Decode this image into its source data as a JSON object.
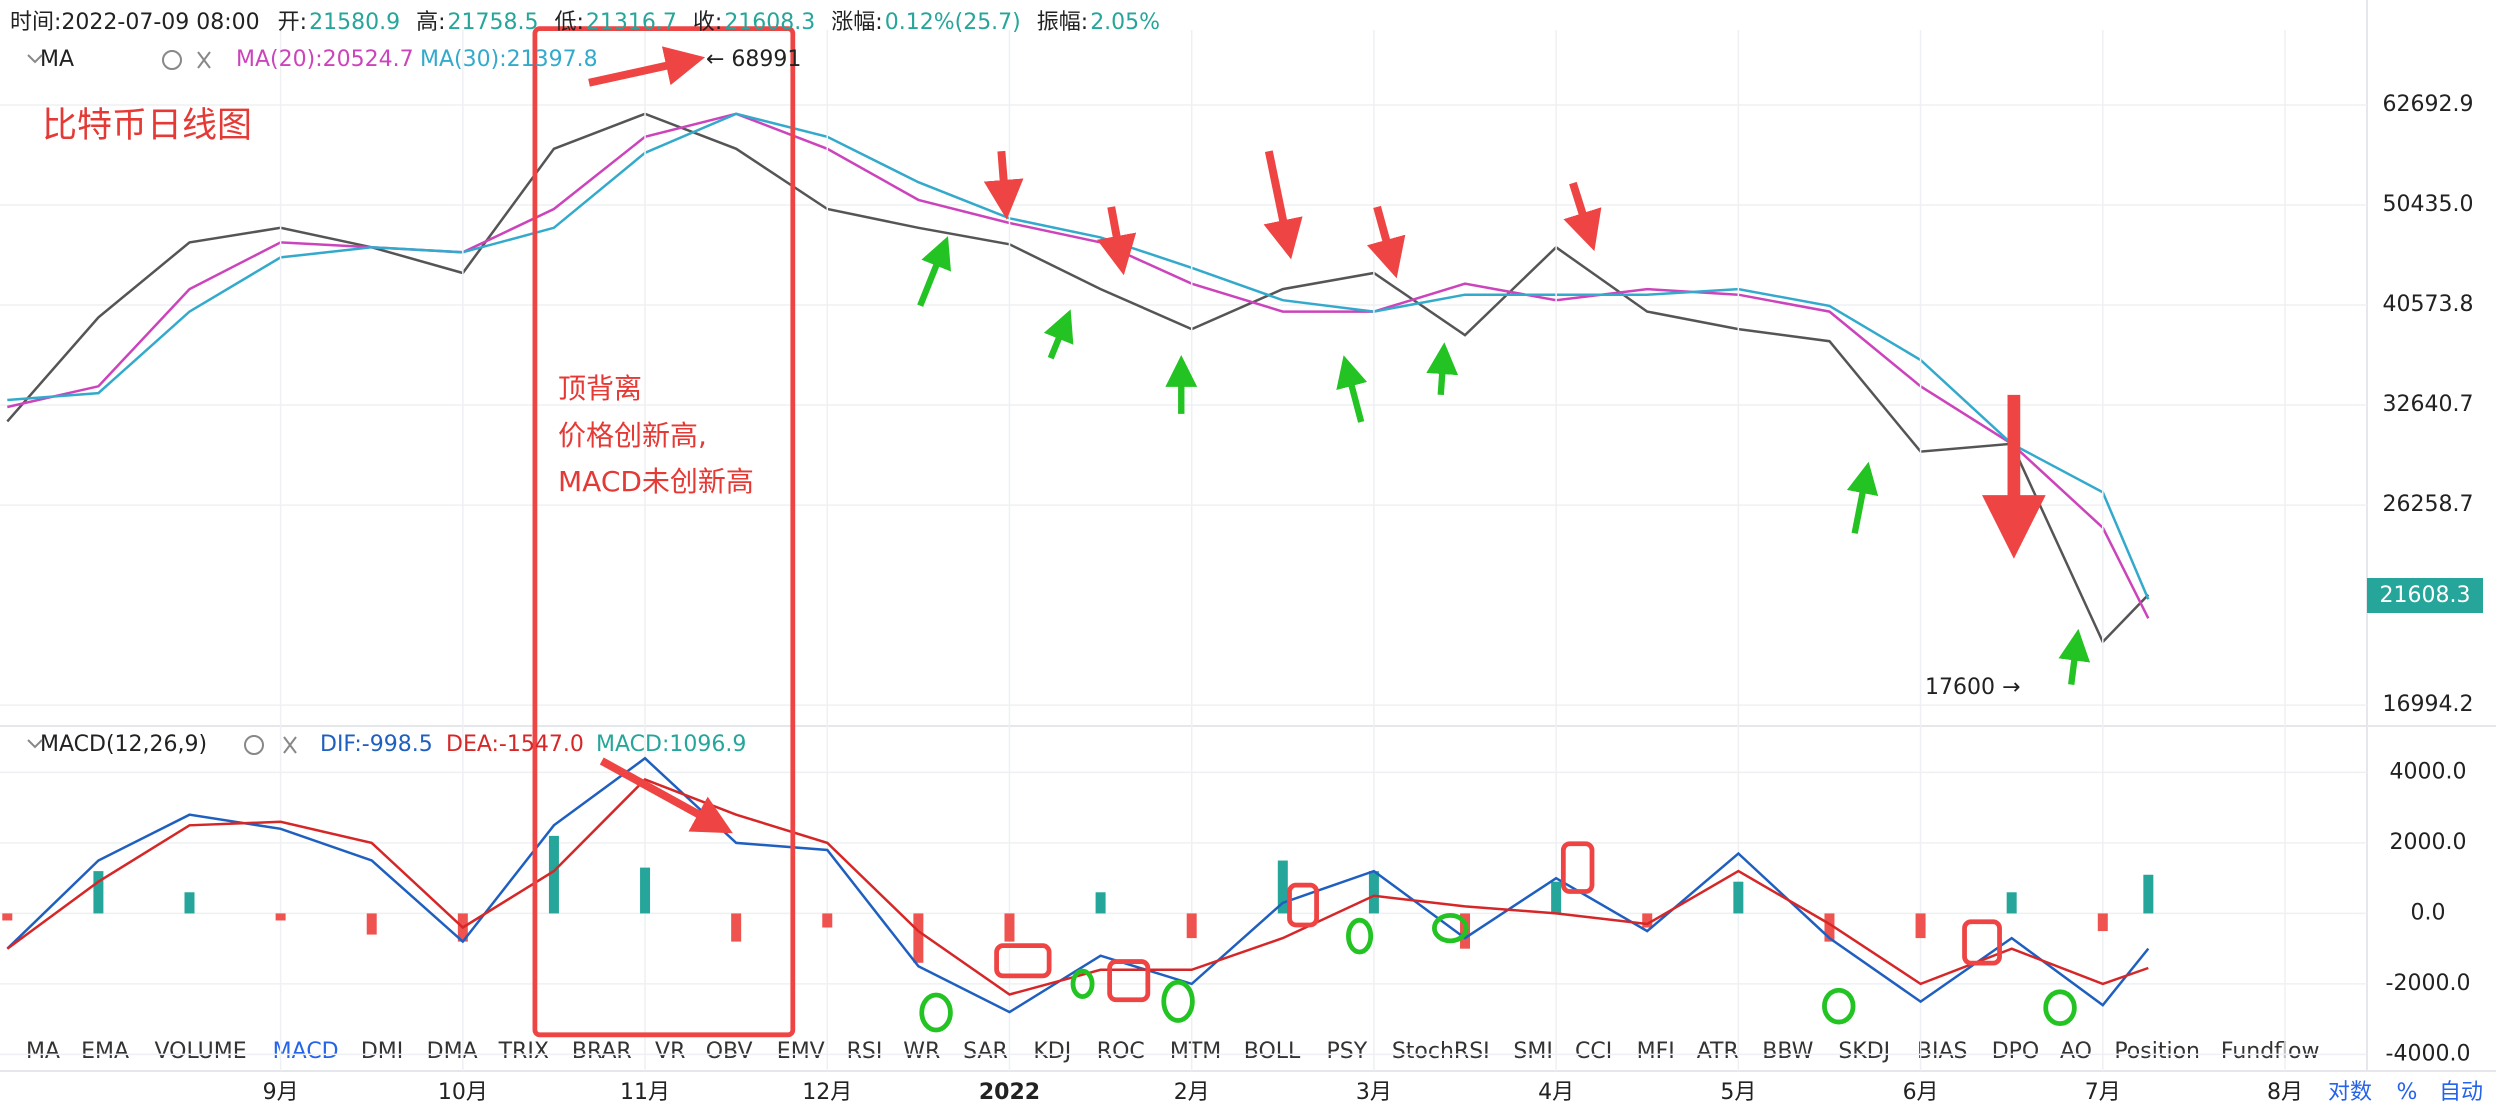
{
  "header": [
    {
      "label": "时间:2022-07-09 08:00"
    },
    {
      "label": "开:",
      "value": "21580.9"
    },
    {
      "label": "高:",
      "value": "21758.5"
    },
    {
      "label": "低:",
      "value": "21316.7"
    },
    {
      "label": "收:",
      "value": "21608.3"
    },
    {
      "label": "涨幅:",
      "value": "0.12%(25.7)"
    },
    {
      "label": "振幅:",
      "value": "2.05%"
    }
  ],
  "price_legend": {
    "name": "MA",
    "items": [
      "MA(20):20524.7",
      "MA(30):21397.8"
    ]
  },
  "macd_legend": {
    "name": "MACD(12,26,9)",
    "items": [
      "DIF:-998.5",
      "DEA:-1547.0",
      "MACD:1096.9"
    ]
  },
  "title": "比特币日线图",
  "annotations": {
    "box": [
      "顶背离",
      "价格创新高,",
      "MACD未创新高"
    ],
    "high": "← 68991",
    "low": "17600 →"
  },
  "price_badge": "21608.3",
  "tabs": [
    "MA",
    "EMA",
    "VOLUME",
    "MACD",
    "DMI",
    "DMA",
    "TRIX",
    "BRAR",
    "VR",
    "OBV",
    "EMV",
    "RSI",
    "WR",
    "SAR",
    "KDJ",
    "ROC",
    "MTM",
    "BOLL",
    "PSY",
    "StochRSI",
    "SMI",
    "CCI",
    "MFI",
    "ATR",
    "BBW",
    "SKDJ",
    "BIAS",
    "DPO",
    "AO",
    "Position",
    "Fundflow"
  ],
  "active_tab": "MACD",
  "bottom_controls": [
    "对数",
    "%",
    "自动"
  ],
  "chart_data": [
    {
      "type": "line",
      "log_scale": true,
      "grid": true,
      "x": [
        7.5,
        8,
        8.5,
        9,
        9.5,
        10,
        10.5,
        11,
        11.5,
        12,
        12.5,
        13,
        13.5,
        14,
        14.5,
        15,
        15.5,
        16,
        16.5,
        17,
        17.5,
        18,
        18.5,
        19,
        19.25
      ],
      "xlim": [
        7.46,
        20.45
      ],
      "ylim": [
        16310,
        73800
      ],
      "yticks": [
        62692.9,
        {
          "value": 50435.0,
          "label": "50435.0"
        },
        40573.8,
        32640.7,
        26258.7,
        16994.2
      ],
      "series": [
        {
          "color": "#555555",
          "values": [
            31500,
            39500,
            46500,
            48000,
            46000,
            43500,
            57000,
            61500,
            57000,
            50000,
            48000,
            46300,
            42000,
            38500,
            42000,
            43500,
            38000,
            46000,
            40000,
            38500,
            37500,
            29500,
            30000,
            19500,
            21608.3
          ]
        },
        {
          "color": "#cc44bb",
          "values": [
            32500,
            34000,
            42000,
            46500,
            46000,
            45500,
            50000,
            58500,
            61500,
            57000,
            51000,
            48500,
            46500,
            42500,
            40000,
            40000,
            42500,
            41000,
            42000,
            41500,
            40000,
            34000,
            30000,
            25000,
            20524.7
          ]
        },
        {
          "color": "#33aacc",
          "values": [
            33000,
            33500,
            40000,
            45000,
            46000,
            45500,
            48000,
            56500,
            61500,
            58500,
            53000,
            49000,
            47000,
            44000,
            41000,
            40000,
            41500,
            41500,
            41500,
            42000,
            40500,
            36000,
            30000,
            27000,
            21397.8
          ]
        }
      ]
    },
    {
      "type": "macd",
      "grid": true,
      "x": [
        7.5,
        8,
        8.5,
        9,
        9.5,
        10,
        10.5,
        11,
        11.5,
        12,
        12.5,
        13,
        13.5,
        14,
        14.5,
        15,
        15.5,
        16,
        16.5,
        17,
        17.5,
        18,
        18.5,
        19,
        19.25
      ],
      "xlim": [
        7.46,
        20.45
      ],
      "xticks": [
        {
          "value": 9,
          "label": "9月"
        },
        {
          "value": 10,
          "label": "10月"
        },
        {
          "value": 11,
          "label": "11月"
        },
        {
          "value": 12,
          "label": "12月"
        },
        {
          "value": 13,
          "label": "2022"
        },
        {
          "value": 14,
          "label": "2月"
        },
        {
          "value": 15,
          "label": "3月"
        },
        {
          "value": 16,
          "label": "4月"
        },
        {
          "value": 17,
          "label": "5月"
        },
        {
          "value": 18,
          "label": "6月"
        },
        {
          "value": 19,
          "label": "7月"
        },
        {
          "value": 20,
          "label": "8月"
        }
      ],
      "ylim": [
        -4470,
        5260
      ],
      "yticks": [
        {
          "value": 4000,
          "label": "4000.0"
        },
        {
          "value": 2000,
          "label": "2000.0"
        },
        {
          "value": 0,
          "label": "0.0"
        },
        {
          "value": -2000,
          "label": "-2000.0"
        },
        {
          "value": -4000,
          "label": "-4000.0"
        }
      ],
      "series": [
        {
          "kind": "bar",
          "colors": [
            "#26a69a",
            "#ef5350"
          ],
          "values": [
            -200,
            1200,
            600,
            -200,
            -600,
            -800,
            2200,
            1300,
            -800,
            -400,
            -1400,
            -800,
            600,
            -700,
            1500,
            1200,
            -1000,
            900,
            -400,
            900,
            -800,
            -700,
            600,
            -500,
            1096.9
          ]
        },
        {
          "kind": "line",
          "color": "#1f5fbf",
          "values": [
            -1000,
            1500,
            2800,
            2400,
            1500,
            -800,
            2500,
            4400,
            2000,
            1800,
            -1500,
            -2800,
            -1200,
            -2000,
            300,
            1200,
            -700,
            1000,
            -500,
            1700,
            -700,
            -2500,
            -700,
            -2600,
            -998.5
          ]
        },
        {
          "kind": "line",
          "color": "#d62728",
          "values": [
            -1000,
            900,
            2500,
            2600,
            2000,
            -400,
            1200,
            3800,
            2800,
            2000,
            -500,
            -2300,
            -1600,
            -1600,
            -700,
            500,
            200,
            0,
            -300,
            1200,
            -300,
            -2000,
            -1000,
            -2000,
            -1547.0
          ]
        }
      ]
    }
  ]
}
